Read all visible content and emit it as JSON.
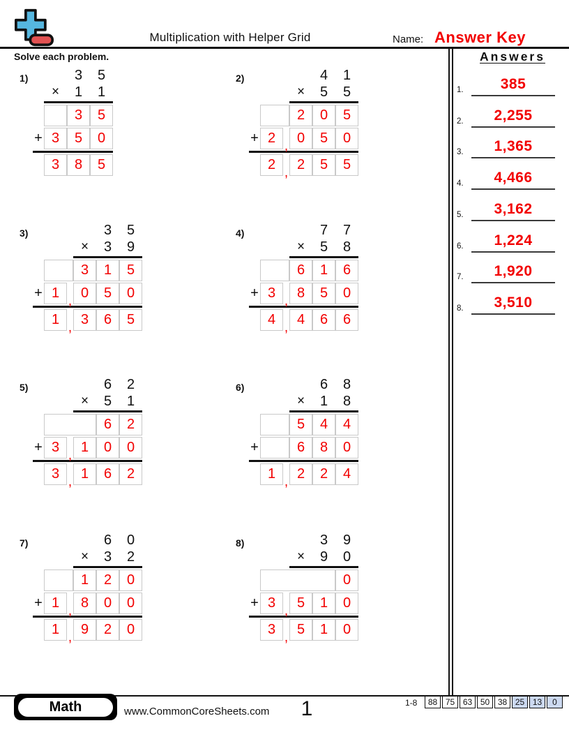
{
  "header": {
    "title": "Multiplication with Helper Grid",
    "name_label": "Name:",
    "name_value": "Answer Key",
    "instruction": "Solve each problem."
  },
  "colors": {
    "accent_red": "#f20000",
    "logo_blue": "#56b7e0",
    "logo_red": "#e25252",
    "grid_border": "#c9c9c9",
    "score_highlight_blue": "#ccd9f1"
  },
  "glyphs": {
    "times": "×",
    "plus": "+",
    "comma": ","
  },
  "problems": [
    {
      "number": "1)",
      "columns": 3,
      "multiplicand": [
        "3",
        "5"
      ],
      "multiplier": [
        "1",
        "1"
      ],
      "rows": [
        {
          "plus": false,
          "cells": [
            "",
            "3",
            "5"
          ]
        },
        {
          "plus": true,
          "cells": [
            "3",
            "5",
            "0"
          ]
        },
        {
          "plus": false,
          "cells": [
            "3",
            "8",
            "5"
          ]
        }
      ],
      "answer": "385"
    },
    {
      "number": "2)",
      "columns": 4,
      "multiplicand": [
        "4",
        "1"
      ],
      "multiplier": [
        "5",
        "5"
      ],
      "rows": [
        {
          "plus": false,
          "cells": [
            "",
            "2",
            "0",
            "5"
          ]
        },
        {
          "plus": true,
          "cells": [
            "2",
            "0",
            "5",
            "0"
          ]
        },
        {
          "plus": false,
          "cells": [
            "2",
            "2",
            "5",
            "5"
          ]
        }
      ],
      "answer": "2,255"
    },
    {
      "number": "3)",
      "columns": 4,
      "multiplicand": [
        "3",
        "5"
      ],
      "multiplier": [
        "3",
        "9"
      ],
      "rows": [
        {
          "plus": false,
          "cells": [
            "",
            "3",
            "1",
            "5"
          ]
        },
        {
          "plus": true,
          "cells": [
            "1",
            "0",
            "5",
            "0"
          ]
        },
        {
          "plus": false,
          "cells": [
            "1",
            "3",
            "6",
            "5"
          ]
        }
      ],
      "answer": "1,365"
    },
    {
      "number": "4)",
      "columns": 4,
      "multiplicand": [
        "7",
        "7"
      ],
      "multiplier": [
        "5",
        "8"
      ],
      "rows": [
        {
          "plus": false,
          "cells": [
            "",
            "6",
            "1",
            "6"
          ]
        },
        {
          "plus": true,
          "cells": [
            "3",
            "8",
            "5",
            "0"
          ]
        },
        {
          "plus": false,
          "cells": [
            "4",
            "4",
            "6",
            "6"
          ]
        }
      ],
      "answer": "4,466"
    },
    {
      "number": "5)",
      "columns": 4,
      "multiplicand": [
        "6",
        "2"
      ],
      "multiplier": [
        "5",
        "1"
      ],
      "rows": [
        {
          "plus": false,
          "cells": [
            "",
            "",
            "6",
            "2"
          ]
        },
        {
          "plus": true,
          "cells": [
            "3",
            "1",
            "0",
            "0"
          ]
        },
        {
          "plus": false,
          "cells": [
            "3",
            "1",
            "6",
            "2"
          ]
        }
      ],
      "answer": "3,162"
    },
    {
      "number": "6)",
      "columns": 4,
      "multiplicand": [
        "6",
        "8"
      ],
      "multiplier": [
        "1",
        "8"
      ],
      "rows": [
        {
          "plus": false,
          "cells": [
            "",
            "5",
            "4",
            "4"
          ]
        },
        {
          "plus": true,
          "cells": [
            "",
            "6",
            "8",
            "0"
          ]
        },
        {
          "plus": false,
          "cells": [
            "1",
            "2",
            "2",
            "4"
          ]
        }
      ],
      "answer": "1,224"
    },
    {
      "number": "7)",
      "columns": 4,
      "multiplicand": [
        "6",
        "0"
      ],
      "multiplier": [
        "3",
        "2"
      ],
      "rows": [
        {
          "plus": false,
          "cells": [
            "",
            "1",
            "2",
            "0"
          ]
        },
        {
          "plus": true,
          "cells": [
            "1",
            "8",
            "0",
            "0"
          ]
        },
        {
          "plus": false,
          "cells": [
            "1",
            "9",
            "2",
            "0"
          ]
        }
      ],
      "answer": "1,920"
    },
    {
      "number": "8)",
      "columns": 4,
      "multiplicand": [
        "3",
        "9"
      ],
      "multiplier": [
        "9",
        "0"
      ],
      "rows": [
        {
          "plus": false,
          "cells": [
            "",
            "",
            "",
            "0"
          ]
        },
        {
          "plus": true,
          "cells": [
            "3",
            "5",
            "1",
            "0"
          ]
        },
        {
          "plus": false,
          "cells": [
            "3",
            "5",
            "1",
            "0"
          ]
        }
      ],
      "answer": "3,510"
    }
  ],
  "answers_panel": {
    "header": "Answers",
    "items": [
      {
        "label": "1.",
        "value": "385"
      },
      {
        "label": "2.",
        "value": "2,255"
      },
      {
        "label": "3.",
        "value": "1,365"
      },
      {
        "label": "4.",
        "value": "4,466"
      },
      {
        "label": "5.",
        "value": "3,162"
      },
      {
        "label": "6.",
        "value": "1,224"
      },
      {
        "label": "7.",
        "value": "1,920"
      },
      {
        "label": "8.",
        "value": "3,510"
      }
    ]
  },
  "footer": {
    "badge": "Math",
    "website": "www.CommonCoreSheets.com",
    "page_number": "1",
    "score_label": "1-8",
    "scores": [
      "88",
      "75",
      "63",
      "50",
      "38",
      "25",
      "13",
      "0"
    ],
    "scores_highlighted": [
      "25",
      "13",
      "0"
    ]
  },
  "icons": {
    "logo": "plus-minus-logo-icon"
  }
}
